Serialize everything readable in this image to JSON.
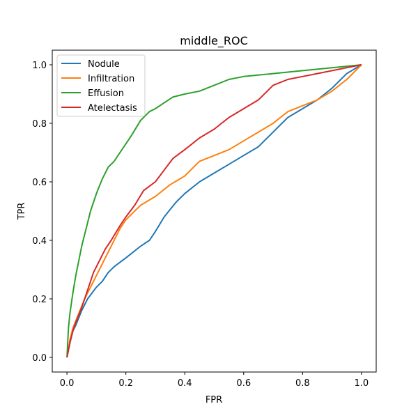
{
  "chart_data": {
    "type": "line",
    "title": "middle_ROC",
    "xlabel": "FPR",
    "ylabel": "TPR",
    "xlim": [
      -0.05,
      1.05
    ],
    "ylim": [
      -0.05,
      1.05
    ],
    "xticks": [
      "0.0",
      "0.2",
      "0.4",
      "0.6",
      "0.8",
      "1.0"
    ],
    "yticks": [
      "0.0",
      "0.2",
      "0.4",
      "0.6",
      "0.8",
      "1.0"
    ],
    "grid": false,
    "legend_position": "top-left",
    "series": [
      {
        "name": "Nodule",
        "color": "#1f77b4",
        "points": [
          [
            0,
            0
          ],
          [
            0.01,
            0.05
          ],
          [
            0.02,
            0.09
          ],
          [
            0.03,
            0.11
          ],
          [
            0.05,
            0.16
          ],
          [
            0.07,
            0.2
          ],
          [
            0.1,
            0.24
          ],
          [
            0.12,
            0.26
          ],
          [
            0.14,
            0.29
          ],
          [
            0.16,
            0.31
          ],
          [
            0.2,
            0.34
          ],
          [
            0.25,
            0.38
          ],
          [
            0.28,
            0.4
          ],
          [
            0.3,
            0.43
          ],
          [
            0.33,
            0.48
          ],
          [
            0.37,
            0.53
          ],
          [
            0.4,
            0.56
          ],
          [
            0.45,
            0.6
          ],
          [
            0.5,
            0.63
          ],
          [
            0.55,
            0.66
          ],
          [
            0.6,
            0.69
          ],
          [
            0.65,
            0.72
          ],
          [
            0.7,
            0.77
          ],
          [
            0.75,
            0.82
          ],
          [
            0.8,
            0.85
          ],
          [
            0.85,
            0.88
          ],
          [
            0.9,
            0.92
          ],
          [
            0.95,
            0.97
          ],
          [
            1,
            1
          ]
        ]
      },
      {
        "name": "Infiltration",
        "color": "#ff7f0e",
        "points": [
          [
            0,
            0
          ],
          [
            0.01,
            0.06
          ],
          [
            0.02,
            0.1
          ],
          [
            0.04,
            0.15
          ],
          [
            0.06,
            0.2
          ],
          [
            0.08,
            0.24
          ],
          [
            0.1,
            0.28
          ],
          [
            0.12,
            0.32
          ],
          [
            0.15,
            0.38
          ],
          [
            0.18,
            0.44
          ],
          [
            0.2,
            0.47
          ],
          [
            0.25,
            0.52
          ],
          [
            0.3,
            0.55
          ],
          [
            0.35,
            0.59
          ],
          [
            0.4,
            0.62
          ],
          [
            0.45,
            0.67
          ],
          [
            0.5,
            0.69
          ],
          [
            0.55,
            0.71
          ],
          [
            0.6,
            0.74
          ],
          [
            0.65,
            0.77
          ],
          [
            0.7,
            0.8
          ],
          [
            0.75,
            0.84
          ],
          [
            0.8,
            0.86
          ],
          [
            0.85,
            0.88
          ],
          [
            0.9,
            0.91
          ],
          [
            0.95,
            0.95
          ],
          [
            1,
            1
          ]
        ]
      },
      {
        "name": "Effusion",
        "color": "#2ca02c",
        "points": [
          [
            0,
            0
          ],
          [
            0.005,
            0.1
          ],
          [
            0.01,
            0.15
          ],
          [
            0.02,
            0.22
          ],
          [
            0.03,
            0.28
          ],
          [
            0.04,
            0.33
          ],
          [
            0.05,
            0.38
          ],
          [
            0.06,
            0.42
          ],
          [
            0.07,
            0.46
          ],
          [
            0.08,
            0.5
          ],
          [
            0.1,
            0.56
          ],
          [
            0.12,
            0.61
          ],
          [
            0.14,
            0.65
          ],
          [
            0.16,
            0.67
          ],
          [
            0.18,
            0.7
          ],
          [
            0.2,
            0.73
          ],
          [
            0.22,
            0.76
          ],
          [
            0.25,
            0.81
          ],
          [
            0.28,
            0.84
          ],
          [
            0.3,
            0.85
          ],
          [
            0.33,
            0.87
          ],
          [
            0.36,
            0.89
          ],
          [
            0.4,
            0.9
          ],
          [
            0.45,
            0.91
          ],
          [
            0.5,
            0.93
          ],
          [
            0.55,
            0.95
          ],
          [
            0.6,
            0.96
          ],
          [
            0.7,
            0.97
          ],
          [
            0.8,
            0.98
          ],
          [
            0.9,
            0.99
          ],
          [
            1,
            1
          ]
        ]
      },
      {
        "name": "Atelectasis",
        "color": "#d62728",
        "points": [
          [
            0,
            0
          ],
          [
            0.01,
            0.05
          ],
          [
            0.02,
            0.09
          ],
          [
            0.03,
            0.12
          ],
          [
            0.05,
            0.17
          ],
          [
            0.07,
            0.23
          ],
          [
            0.09,
            0.29
          ],
          [
            0.11,
            0.33
          ],
          [
            0.13,
            0.37
          ],
          [
            0.15,
            0.4
          ],
          [
            0.18,
            0.45
          ],
          [
            0.2,
            0.48
          ],
          [
            0.23,
            0.52
          ],
          [
            0.26,
            0.57
          ],
          [
            0.3,
            0.6
          ],
          [
            0.33,
            0.64
          ],
          [
            0.36,
            0.68
          ],
          [
            0.4,
            0.71
          ],
          [
            0.45,
            0.75
          ],
          [
            0.5,
            0.78
          ],
          [
            0.55,
            0.82
          ],
          [
            0.6,
            0.85
          ],
          [
            0.65,
            0.88
          ],
          [
            0.7,
            0.93
          ],
          [
            0.75,
            0.95
          ],
          [
            0.8,
            0.96
          ],
          [
            0.85,
            0.97
          ],
          [
            0.9,
            0.98
          ],
          [
            0.95,
            0.99
          ],
          [
            1,
            1
          ]
        ]
      }
    ]
  }
}
